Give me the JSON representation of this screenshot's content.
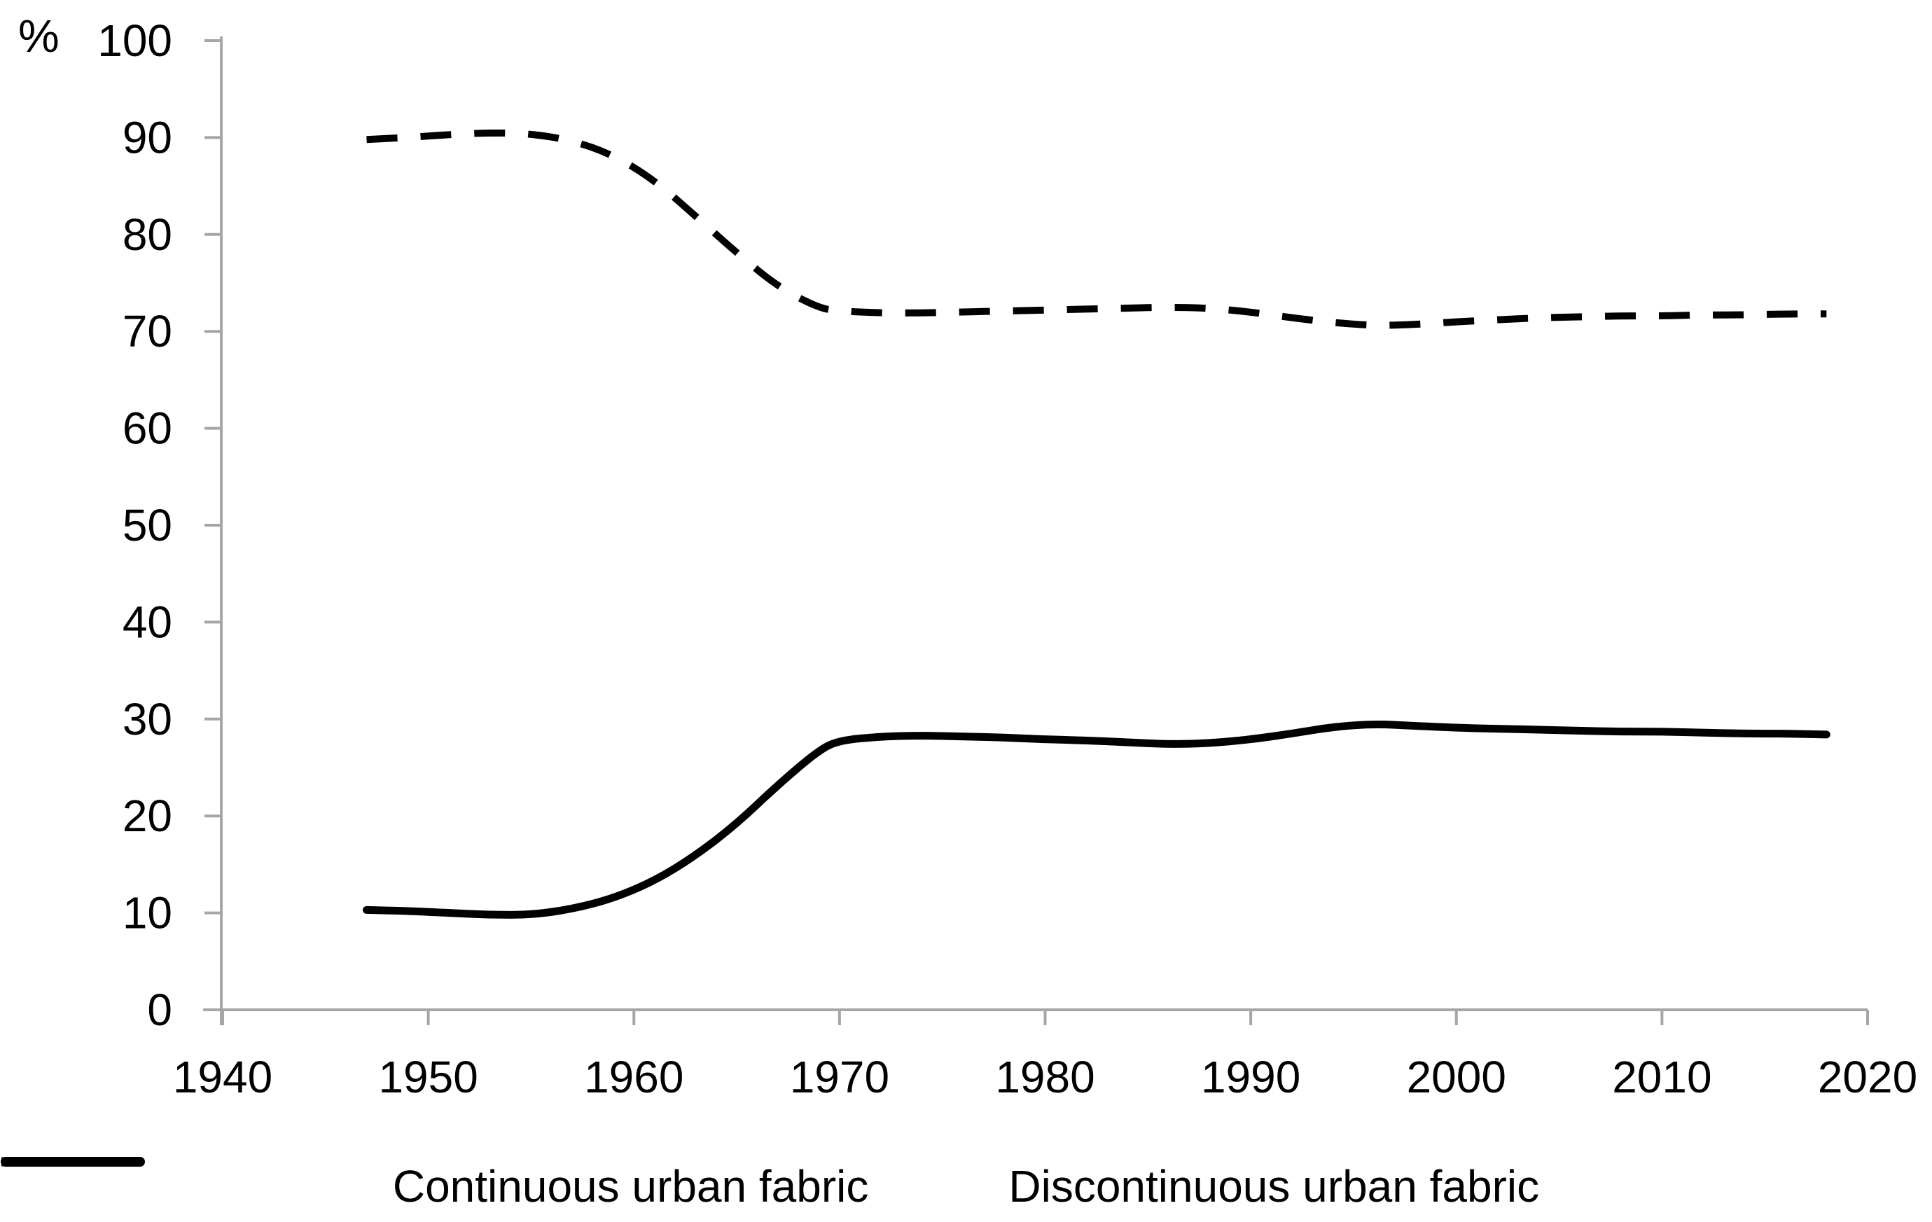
{
  "chart_data": {
    "type": "line",
    "title": "",
    "ylabel": "%",
    "xlabel": "",
    "xlim": [
      1940,
      2020
    ],
    "ylim": [
      0,
      100
    ],
    "xticks": [
      1940,
      1950,
      1960,
      1970,
      1980,
      1990,
      2000,
      2010,
      2020
    ],
    "yticks": [
      0,
      10,
      20,
      30,
      40,
      50,
      60,
      70,
      80,
      90,
      100
    ],
    "grid": false,
    "legend_position": "bottom",
    "series": [
      {
        "name": "Continuous urban fabric",
        "style": "solid",
        "color": "#000000",
        "points": [
          [
            1947,
            10.3
          ],
          [
            1949,
            10.2
          ],
          [
            1951,
            10.0
          ],
          [
            1953,
            9.8
          ],
          [
            1955,
            9.8
          ],
          [
            1957,
            10.4
          ],
          [
            1959,
            11.5
          ],
          [
            1961,
            13.3
          ],
          [
            1963,
            15.9
          ],
          [
            1965,
            19.2
          ],
          [
            1967,
            23.2
          ],
          [
            1969,
            26.8
          ],
          [
            1970,
            27.8
          ],
          [
            1972,
            28.2
          ],
          [
            1974,
            28.3
          ],
          [
            1976,
            28.2
          ],
          [
            1978,
            28.1
          ],
          [
            1980,
            27.9
          ],
          [
            1982,
            27.8
          ],
          [
            1984,
            27.6
          ],
          [
            1986,
            27.4
          ],
          [
            1988,
            27.5
          ],
          [
            1990,
            27.9
          ],
          [
            1992,
            28.5
          ],
          [
            1994,
            29.2
          ],
          [
            1996,
            29.5
          ],
          [
            1998,
            29.3
          ],
          [
            2000,
            29.1
          ],
          [
            2002,
            29.0
          ],
          [
            2004,
            28.9
          ],
          [
            2006,
            28.8
          ],
          [
            2008,
            28.7
          ],
          [
            2010,
            28.7
          ],
          [
            2012,
            28.6
          ],
          [
            2014,
            28.5
          ],
          [
            2016,
            28.5
          ],
          [
            2018,
            28.4
          ]
        ]
      },
      {
        "name": "Discontinuous urban fabric",
        "style": "dashed",
        "color": "#000000",
        "points": [
          [
            1947,
            89.8
          ],
          [
            1949,
            90.0
          ],
          [
            1951,
            90.3
          ],
          [
            1953,
            90.5
          ],
          [
            1955,
            90.4
          ],
          [
            1957,
            89.7
          ],
          [
            1959,
            88.2
          ],
          [
            1961,
            85.6
          ],
          [
            1963,
            81.9
          ],
          [
            1965,
            78.1
          ],
          [
            1967,
            74.6
          ],
          [
            1969,
            72.4
          ],
          [
            1970,
            72.1
          ],
          [
            1972,
            71.9
          ],
          [
            1974,
            71.9
          ],
          [
            1976,
            72.0
          ],
          [
            1978,
            72.1
          ],
          [
            1980,
            72.2
          ],
          [
            1982,
            72.3
          ],
          [
            1984,
            72.4
          ],
          [
            1986,
            72.5
          ],
          [
            1988,
            72.4
          ],
          [
            1990,
            72.0
          ],
          [
            1992,
            71.4
          ],
          [
            1994,
            70.9
          ],
          [
            1996,
            70.6
          ],
          [
            1998,
            70.7
          ],
          [
            2000,
            71.0
          ],
          [
            2002,
            71.2
          ],
          [
            2004,
            71.4
          ],
          [
            2006,
            71.5
          ],
          [
            2008,
            71.6
          ],
          [
            2010,
            71.6
          ],
          [
            2012,
            71.7
          ],
          [
            2014,
            71.7
          ],
          [
            2016,
            71.8
          ],
          [
            2018,
            71.8
          ]
        ]
      }
    ]
  },
  "colors": {
    "axis": "#a6a6a6",
    "line": "#000000",
    "background": "#ffffff"
  }
}
